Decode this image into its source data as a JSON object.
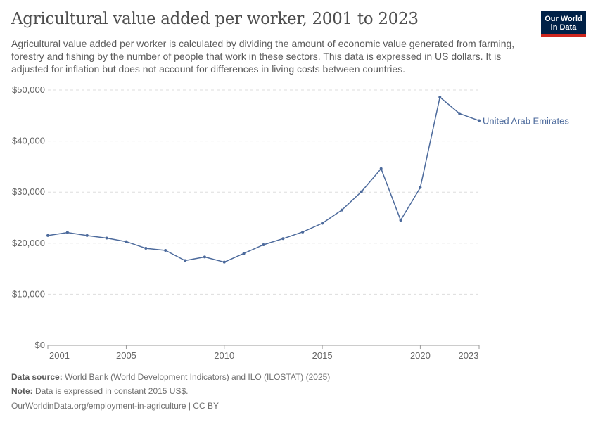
{
  "header": {
    "title": "Agricultural value added per worker, 2001 to 2023",
    "subtitle": "Agricultural value added per worker is calculated by dividing the amount of economic value generated from farming, forestry and fishing by the number of people that work in these sectors. This data is expressed in US dollars. It is adjusted for inflation but does not account for differences in living costs between countries."
  },
  "logo": {
    "line1": "Our World",
    "line2": "in Data",
    "bg_color": "#002147",
    "accent_color": "#ce261e"
  },
  "footer": {
    "source_label": "Data source:",
    "source_text": "World Bank (World Development Indicators) and ILO (ILOSTAT) (2025)",
    "note_label": "Note:",
    "note_text": "Data is expressed in constant 2015 US$.",
    "url_text": "OurWorldinData.org/employment-in-agriculture | CC BY"
  },
  "chart_data": {
    "type": "line",
    "title": "Agricultural value added per worker, 2001 to 2023",
    "xlabel": "",
    "ylabel": "",
    "xlim": [
      2001,
      2023
    ],
    "ylim": [
      0,
      50000
    ],
    "y_ticks": [
      0,
      10000,
      20000,
      30000,
      40000,
      50000
    ],
    "y_tick_labels": [
      "$0",
      "$10,000",
      "$20,000",
      "$30,000",
      "$40,000",
      "$50,000"
    ],
    "x_ticks": [
      2001,
      2005,
      2010,
      2015,
      2020,
      2023
    ],
    "x_tick_labels": [
      "2001",
      "2005",
      "2010",
      "2015",
      "2020",
      "2023"
    ],
    "grid": true,
    "series": [
      {
        "name": "United Arab Emirates",
        "color": "#4c6a9c",
        "x": [
          2001,
          2002,
          2003,
          2004,
          2005,
          2006,
          2007,
          2008,
          2009,
          2010,
          2011,
          2012,
          2013,
          2014,
          2015,
          2016,
          2017,
          2018,
          2019,
          2020,
          2021,
          2022,
          2023
        ],
        "values": [
          21500,
          22100,
          21500,
          21000,
          20300,
          19000,
          18600,
          16600,
          17300,
          16300,
          18000,
          19700,
          20900,
          22200,
          23900,
          26500,
          30100,
          34600,
          24500,
          30900,
          48600,
          45400,
          44000
        ]
      }
    ]
  }
}
